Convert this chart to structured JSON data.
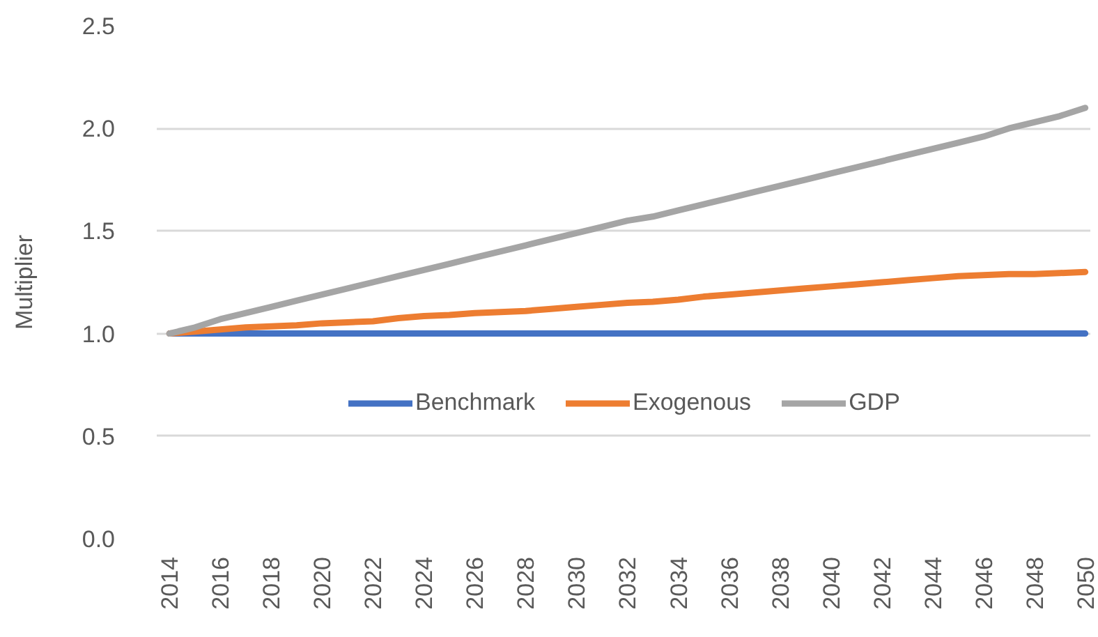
{
  "chart_data": {
    "type": "line",
    "ylabel": "Multiplier",
    "x": [
      2014,
      2015,
      2016,
      2017,
      2018,
      2019,
      2020,
      2021,
      2022,
      2023,
      2024,
      2025,
      2026,
      2027,
      2028,
      2029,
      2030,
      2031,
      2032,
      2033,
      2034,
      2035,
      2036,
      2037,
      2038,
      2039,
      2040,
      2041,
      2042,
      2043,
      2044,
      2045,
      2046,
      2047,
      2048,
      2049,
      2050
    ],
    "series": [
      {
        "name": "Benchmark",
        "color": "#4472c4",
        "values": [
          1.0,
          1.0,
          1.0,
          1.0,
          1.0,
          1.0,
          1.0,
          1.0,
          1.0,
          1.0,
          1.0,
          1.0,
          1.0,
          1.0,
          1.0,
          1.0,
          1.0,
          1.0,
          1.0,
          1.0,
          1.0,
          1.0,
          1.0,
          1.0,
          1.0,
          1.0,
          1.0,
          1.0,
          1.0,
          1.0,
          1.0,
          1.0,
          1.0,
          1.0,
          1.0,
          1.0,
          1.0
        ]
      },
      {
        "name": "Exogenous",
        "color": "#ed7d31",
        "values": [
          1.0,
          1.01,
          1.02,
          1.03,
          1.035,
          1.04,
          1.05,
          1.055,
          1.06,
          1.075,
          1.085,
          1.09,
          1.1,
          1.105,
          1.11,
          1.12,
          1.13,
          1.14,
          1.15,
          1.155,
          1.165,
          1.18,
          1.19,
          1.2,
          1.21,
          1.22,
          1.23,
          1.24,
          1.25,
          1.26,
          1.27,
          1.28,
          1.285,
          1.29,
          1.29,
          1.295,
          1.3
        ]
      },
      {
        "name": "GDP",
        "color": "#a5a5a5",
        "values": [
          1.0,
          1.03,
          1.07,
          1.1,
          1.13,
          1.16,
          1.19,
          1.22,
          1.25,
          1.28,
          1.31,
          1.34,
          1.37,
          1.4,
          1.43,
          1.46,
          1.49,
          1.52,
          1.55,
          1.57,
          1.6,
          1.63,
          1.66,
          1.69,
          1.72,
          1.75,
          1.78,
          1.81,
          1.84,
          1.87,
          1.9,
          1.93,
          1.96,
          2.0,
          2.03,
          2.06,
          2.1
        ]
      }
    ],
    "xlim": [
      2013.5,
      2050.2
    ],
    "xticks": [
      2014,
      2016,
      2018,
      2020,
      2022,
      2024,
      2026,
      2028,
      2030,
      2032,
      2034,
      2036,
      2038,
      2040,
      2042,
      2044,
      2046,
      2048,
      2050
    ],
    "ylim": [
      0,
      2.5
    ],
    "yticks": [
      {
        "value": 0,
        "label": "0.0"
      },
      0.5,
      {
        "value": 1,
        "label": "1.0"
      },
      1.5,
      {
        "value": 2,
        "label": "2.0"
      },
      2.5
    ],
    "grid": "y",
    "legend": "center",
    "line_style": "solid"
  }
}
